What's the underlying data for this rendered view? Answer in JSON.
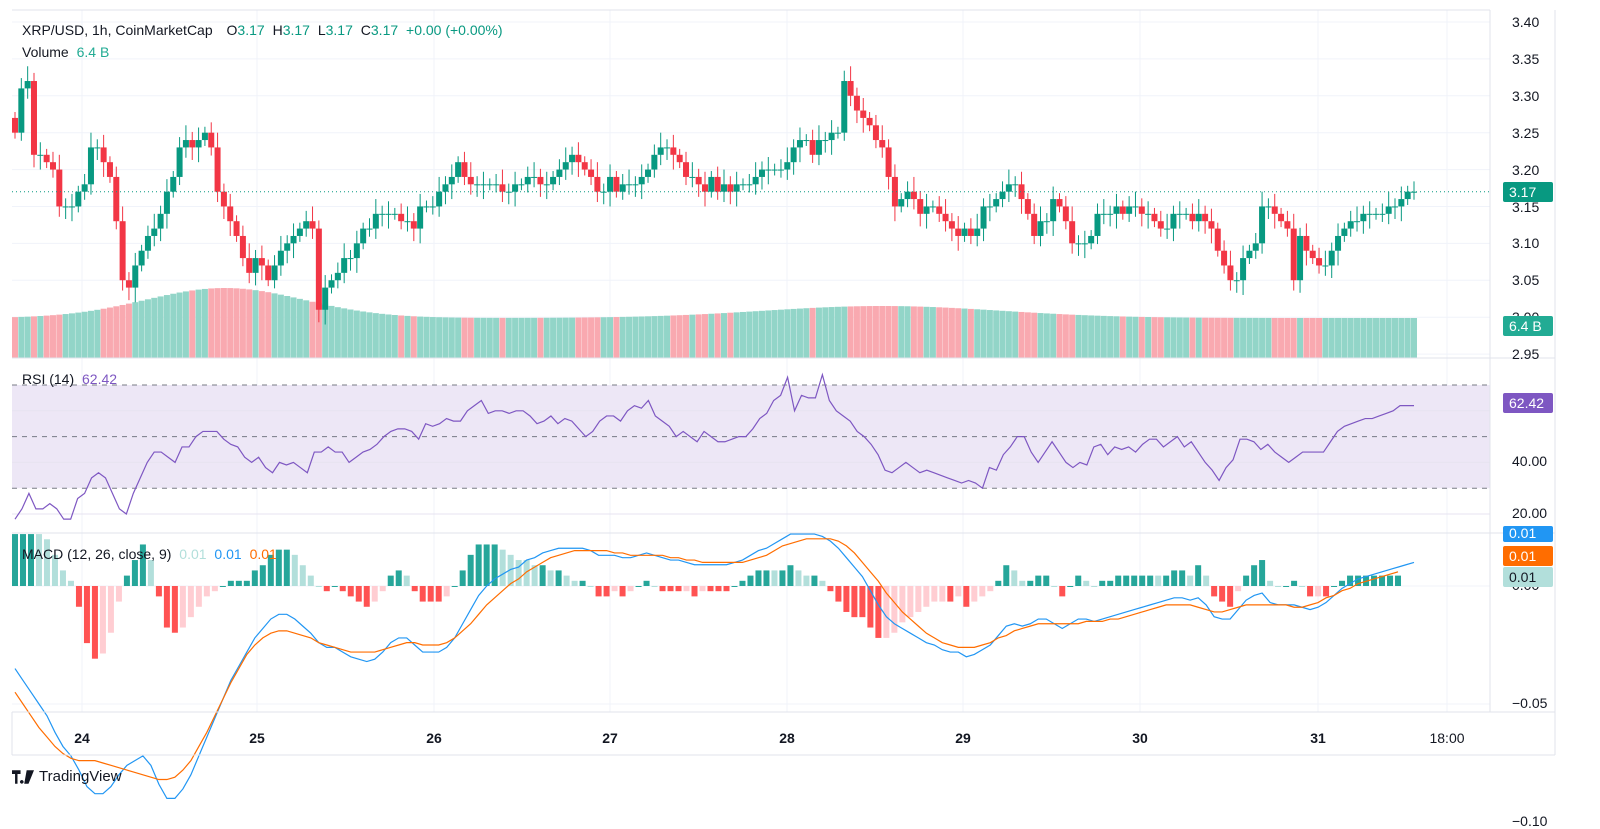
{
  "header": {
    "symbol": "XRP/USD, 1h, CoinMarketCap",
    "o_label": "O",
    "o_value": "3.17",
    "h_label": "H",
    "h_value": "3.17",
    "l_label": "L",
    "l_value": "3.17",
    "c_label": "C",
    "c_value": "3.17",
    "change": "+0.00 (+0.00%)",
    "volume_label": "Volume",
    "volume_value": "6.4 B"
  },
  "rsi": {
    "label": "RSI (14)",
    "value": "62.42"
  },
  "macd": {
    "label": "MACD (12, 26, close, 9)",
    "hist_value": "0.01",
    "macd_value": "0.01",
    "signal_value": "0.01"
  },
  "price_axis": [
    "3.40",
    "3.35",
    "3.30",
    "3.25",
    "3.20",
    "3.15",
    "3.10",
    "3.05",
    "3.00",
    "2.95"
  ],
  "rsi_axis": [
    "40.00",
    "20.00"
  ],
  "macd_axis": [
    "0.00",
    "−0.05",
    "−0.10"
  ],
  "price_tag": "3.17",
  "volume_tag": "6.4 B",
  "rsi_tag": "62.42",
  "macd_tags": {
    "macd": "0.01",
    "signal": "0.01",
    "hist": "0.01"
  },
  "time_axis": [
    {
      "label": "24",
      "bold": true
    },
    {
      "label": "25",
      "bold": true
    },
    {
      "label": "26",
      "bold": true
    },
    {
      "label": "27",
      "bold": true
    },
    {
      "label": "28",
      "bold": true
    },
    {
      "label": "29",
      "bold": true
    },
    {
      "label": "30",
      "bold": true
    },
    {
      "label": "31",
      "bold": true
    },
    {
      "label": "18:00",
      "bold": false
    }
  ],
  "brand": "TradingView",
  "colors": {
    "up": "#089981",
    "down": "#f23645",
    "vol_up": "#92d5c8",
    "vol_down": "#f9a9b0",
    "rsi": "#7e57c2",
    "rsi_band": "#ede7f6",
    "macd": "#2196f3",
    "signal": "#ff6d00",
    "hist_up_strong": "#26a69a",
    "hist_up_weak": "#b2dfdb",
    "hist_down_strong": "#ff5252",
    "hist_down_weak": "#ffcdd2"
  },
  "chart_data": {
    "type": "candlestick",
    "title": "XRP/USD, 1h, CoinMarketCap",
    "x_ticks": [
      "24",
      "25",
      "26",
      "27",
      "28",
      "29",
      "30",
      "31",
      "18:00"
    ],
    "price_range": [
      2.95,
      3.4
    ],
    "rsi_range": [
      10,
      80
    ],
    "rsi_levels": [
      30,
      50,
      70
    ],
    "macd_range": [
      -0.11,
      0.02
    ],
    "closes": [
      3.25,
      3.31,
      3.32,
      3.22,
      3.22,
      3.21,
      3.2,
      3.15,
      3.15,
      3.15,
      3.17,
      3.18,
      3.23,
      3.23,
      3.21,
      3.19,
      3.13,
      3.05,
      3.04,
      3.07,
      3.09,
      3.11,
      3.12,
      3.14,
      3.17,
      3.19,
      3.23,
      3.24,
      3.23,
      3.24,
      3.25,
      3.23,
      3.17,
      3.15,
      3.13,
      3.11,
      3.08,
      3.06,
      3.08,
      3.07,
      3.05,
      3.07,
      3.09,
      3.1,
      3.11,
      3.12,
      3.13,
      3.12,
      3.01,
      3.04,
      3.05,
      3.06,
      3.08,
      3.08,
      3.1,
      3.12,
      3.12,
      3.14,
      3.14,
      3.14,
      3.14,
      3.13,
      3.13,
      3.12,
      3.15,
      3.15,
      3.15,
      3.17,
      3.18,
      3.19,
      3.21,
      3.19,
      3.18,
      3.18,
      3.18,
      3.18,
      3.18,
      3.17,
      3.17,
      3.18,
      3.18,
      3.19,
      3.19,
      3.18,
      3.18,
      3.19,
      3.2,
      3.21,
      3.22,
      3.21,
      3.2,
      3.19,
      3.17,
      3.17,
      3.19,
      3.17,
      3.18,
      3.18,
      3.18,
      3.19,
      3.2,
      3.22,
      3.23,
      3.23,
      3.22,
      3.21,
      3.19,
      3.19,
      3.18,
      3.17,
      3.19,
      3.17,
      3.18,
      3.17,
      3.18,
      3.18,
      3.18,
      3.19,
      3.2,
      3.2,
      3.2,
      3.2,
      3.21,
      3.23,
      3.24,
      3.24,
      3.22,
      3.24,
      3.24,
      3.25,
      3.25,
      3.32,
      3.3,
      3.28,
      3.27,
      3.26,
      3.24,
      3.23,
      3.19,
      3.15,
      3.16,
      3.17,
      3.16,
      3.14,
      3.15,
      3.15,
      3.14,
      3.13,
      3.12,
      3.11,
      3.12,
      3.11,
      3.12,
      3.15,
      3.15,
      3.16,
      3.17,
      3.18,
      3.18,
      3.16,
      3.14,
      3.11,
      3.13,
      3.13,
      3.16,
      3.15,
      3.13,
      3.1,
      3.1,
      3.1,
      3.11,
      3.14,
      3.14,
      3.14,
      3.15,
      3.14,
      3.15,
      3.15,
      3.14,
      3.14,
      3.13,
      3.12,
      3.12,
      3.14,
      3.14,
      3.14,
      3.13,
      3.14,
      3.13,
      3.12,
      3.09,
      3.07,
      3.05,
      3.05,
      3.08,
      3.09,
      3.1,
      3.15,
      3.15,
      3.14,
      3.13,
      3.12,
      3.05,
      3.11,
      3.09,
      3.08,
      3.07,
      3.07,
      3.09,
      3.11,
      3.12,
      3.13,
      3.13,
      3.14,
      3.14,
      3.14,
      3.14,
      3.15,
      3.15,
      3.16,
      3.17,
      3.17
    ],
    "rsi": [
      18,
      22,
      28,
      22,
      22,
      24,
      22,
      18,
      18,
      26,
      28,
      34,
      36,
      34,
      28,
      22,
      20,
      28,
      34,
      40,
      44,
      44,
      42,
      40,
      46,
      46,
      50,
      52,
      52,
      52,
      49,
      47,
      46,
      42,
      40,
      42,
      38,
      36,
      40,
      39,
      40,
      38,
      36,
      44,
      44,
      46,
      44,
      44,
      40,
      42,
      44,
      45,
      47,
      50,
      52,
      53,
      53,
      52,
      49,
      55,
      54,
      55,
      57,
      56,
      56,
      60,
      62,
      64,
      59,
      60,
      60,
      59,
      60,
      60,
      58,
      55,
      56,
      58,
      55,
      57,
      56,
      53,
      50,
      52,
      56,
      58,
      58,
      56,
      60,
      62,
      61,
      64,
      58,
      56,
      54,
      50,
      52,
      50,
      48,
      52,
      50,
      48,
      48,
      49,
      50,
      50,
      53,
      57,
      59,
      64,
      66,
      73,
      60,
      66,
      65,
      65,
      74,
      64,
      60,
      58,
      56,
      52,
      50,
      47,
      43,
      37,
      36,
      38,
      40,
      38,
      36,
      37,
      36,
      35,
      34,
      33,
      32,
      33,
      32,
      30,
      38,
      37,
      43,
      46,
      50,
      50,
      44,
      40,
      44,
      48,
      44,
      40,
      38,
      40,
      39,
      46,
      47,
      43,
      46,
      45,
      46,
      44,
      47,
      49,
      49,
      46,
      48,
      50,
      46,
      48,
      44,
      40,
      37,
      33,
      38,
      41,
      49,
      49,
      48,
      45,
      47,
      44,
      42,
      40,
      42,
      44,
      44,
      44,
      44,
      48,
      52,
      54,
      55,
      56,
      57,
      57,
      58,
      59,
      60,
      62,
      62,
      62
    ],
    "macd_line": [
      -0.035,
      -0.04,
      -0.045,
      -0.05,
      -0.055,
      -0.062,
      -0.068,
      -0.072,
      -0.078,
      -0.085,
      -0.088,
      -0.088,
      -0.085,
      -0.08,
      -0.076,
      -0.074,
      -0.072,
      -0.076,
      -0.084,
      -0.09,
      -0.09,
      -0.086,
      -0.08,
      -0.072,
      -0.064,
      -0.056,
      -0.048,
      -0.04,
      -0.034,
      -0.028,
      -0.022,
      -0.018,
      -0.014,
      -0.012,
      -0.012,
      -0.014,
      -0.017,
      -0.02,
      -0.024,
      -0.026,
      -0.026,
      -0.028,
      -0.03,
      -0.031,
      -0.032,
      -0.031,
      -0.028,
      -0.024,
      -0.022,
      -0.022,
      -0.025,
      -0.028,
      -0.028,
      -0.028,
      -0.026,
      -0.022,
      -0.016,
      -0.01,
      -0.004,
      0.0,
      0.003,
      0.005,
      0.007,
      0.008,
      0.011,
      0.012,
      0.014,
      0.015,
      0.016,
      0.016,
      0.016,
      0.016,
      0.015,
      0.013,
      0.013,
      0.013,
      0.012,
      0.012,
      0.013,
      0.014,
      0.013,
      0.012,
      0.011,
      0.011,
      0.01,
      0.009,
      0.009,
      0.009,
      0.009,
      0.009,
      0.01,
      0.011,
      0.013,
      0.015,
      0.016,
      0.018,
      0.02,
      0.022,
      0.022,
      0.022,
      0.022,
      0.021,
      0.019,
      0.016,
      0.012,
      0.008,
      0.004,
      -0.002,
      -0.008,
      -0.013,
      -0.016,
      -0.018,
      -0.02,
      -0.022,
      -0.024,
      -0.025,
      -0.027,
      -0.028,
      -0.028,
      -0.03,
      -0.029,
      -0.027,
      -0.025,
      -0.021,
      -0.017,
      -0.016,
      -0.017,
      -0.016,
      -0.014,
      -0.014,
      -0.016,
      -0.018,
      -0.016,
      -0.014,
      -0.014,
      -0.015,
      -0.014,
      -0.013,
      -0.012,
      -0.011,
      -0.01,
      -0.009,
      -0.008,
      -0.007,
      -0.006,
      -0.005,
      -0.005,
      -0.006,
      -0.005,
      -0.008,
      -0.013,
      -0.014,
      -0.014,
      -0.01,
      -0.006,
      -0.004,
      -0.003,
      -0.007,
      -0.008,
      -0.008,
      -0.008,
      -0.009,
      -0.01,
      -0.009,
      -0.007,
      -0.004,
      -0.001,
      0.001,
      0.003,
      0.004,
      0.005,
      0.006,
      0.007,
      0.008,
      0.009,
      0.01
    ],
    "signal_line": [
      -0.045,
      -0.05,
      -0.055,
      -0.06,
      -0.064,
      -0.068,
      -0.071,
      -0.073,
      -0.074,
      -0.074,
      -0.074,
      -0.075,
      -0.076,
      -0.077,
      -0.078,
      -0.079,
      -0.08,
      -0.081,
      -0.082,
      -0.082,
      -0.081,
      -0.078,
      -0.074,
      -0.068,
      -0.062,
      -0.055,
      -0.048,
      -0.041,
      -0.035,
      -0.029,
      -0.025,
      -0.022,
      -0.02,
      -0.019,
      -0.019,
      -0.02,
      -0.021,
      -0.022,
      -0.024,
      -0.025,
      -0.026,
      -0.027,
      -0.028,
      -0.028,
      -0.028,
      -0.028,
      -0.027,
      -0.026,
      -0.025,
      -0.024,
      -0.024,
      -0.025,
      -0.025,
      -0.025,
      -0.024,
      -0.022,
      -0.019,
      -0.016,
      -0.012,
      -0.008,
      -0.005,
      -0.002,
      0.001,
      0.003,
      0.006,
      0.008,
      0.01,
      0.012,
      0.013,
      0.014,
      0.015,
      0.015,
      0.015,
      0.015,
      0.015,
      0.014,
      0.014,
      0.013,
      0.013,
      0.013,
      0.013,
      0.013,
      0.012,
      0.012,
      0.011,
      0.011,
      0.01,
      0.01,
      0.01,
      0.01,
      0.01,
      0.01,
      0.011,
      0.012,
      0.013,
      0.015,
      0.017,
      0.018,
      0.019,
      0.02,
      0.02,
      0.02,
      0.02,
      0.019,
      0.017,
      0.014,
      0.01,
      0.006,
      0.002,
      -0.003,
      -0.007,
      -0.011,
      -0.014,
      -0.017,
      -0.02,
      -0.022,
      -0.024,
      -0.025,
      -0.026,
      -0.026,
      -0.026,
      -0.025,
      -0.024,
      -0.022,
      -0.021,
      -0.019,
      -0.018,
      -0.017,
      -0.016,
      -0.016,
      -0.016,
      -0.016,
      -0.016,
      -0.016,
      -0.015,
      -0.015,
      -0.015,
      -0.014,
      -0.014,
      -0.013,
      -0.012,
      -0.011,
      -0.01,
      -0.009,
      -0.008,
      -0.008,
      -0.008,
      -0.008,
      -0.009,
      -0.01,
      -0.011,
      -0.011,
      -0.01,
      -0.009,
      -0.008,
      -0.008,
      -0.008,
      -0.008,
      -0.008,
      -0.008,
      -0.009,
      -0.009,
      -0.008,
      -0.007,
      -0.005,
      -0.004,
      -0.002,
      -0.001,
      0.001,
      0.002,
      0.003,
      0.004,
      0.005,
      0.006
    ]
  }
}
